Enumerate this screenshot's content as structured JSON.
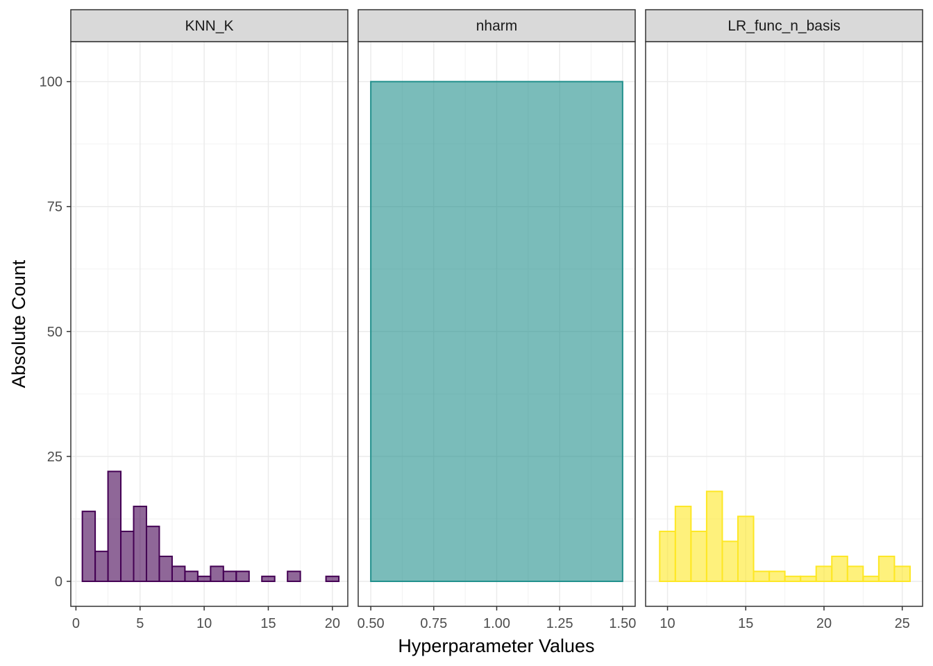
{
  "chart_data": {
    "type": "bar",
    "subtype": "faceted-histogram",
    "title": "",
    "xlabel": "Hyperparameter Values",
    "ylabel": "Absolute Count",
    "ylim": [
      -5,
      108
    ],
    "y_ticks": [
      0,
      25,
      50,
      75,
      100
    ],
    "y_tick_labels": [
      "0",
      "25",
      "50",
      "75",
      "100"
    ],
    "grid": true,
    "legend": "none",
    "facets": [
      {
        "name": "KNN_K",
        "fill": "#440154",
        "outline": "#440154",
        "fill_opacity": 0.6,
        "xlim": [
          -0.4,
          21.2
        ],
        "x_ticks": [
          0,
          5,
          10,
          15,
          20
        ],
        "x_tick_labels": [
          "0",
          "5",
          "10",
          "15",
          "20"
        ],
        "bins": [
          {
            "x0": 0.5,
            "x1": 1.5,
            "count": 14
          },
          {
            "x0": 1.5,
            "x1": 2.5,
            "count": 6
          },
          {
            "x0": 2.5,
            "x1": 3.5,
            "count": 22
          },
          {
            "x0": 3.5,
            "x1": 4.5,
            "count": 10
          },
          {
            "x0": 4.5,
            "x1": 5.5,
            "count": 15
          },
          {
            "x0": 5.5,
            "x1": 6.5,
            "count": 11
          },
          {
            "x0": 6.5,
            "x1": 7.5,
            "count": 5
          },
          {
            "x0": 7.5,
            "x1": 8.5,
            "count": 3
          },
          {
            "x0": 8.5,
            "x1": 9.5,
            "count": 2
          },
          {
            "x0": 9.5,
            "x1": 10.5,
            "count": 1
          },
          {
            "x0": 10.5,
            "x1": 11.5,
            "count": 3
          },
          {
            "x0": 11.5,
            "x1": 12.5,
            "count": 2
          },
          {
            "x0": 12.5,
            "x1": 13.5,
            "count": 2
          },
          {
            "x0": 13.5,
            "x1": 14.5,
            "count": 0
          },
          {
            "x0": 14.5,
            "x1": 15.5,
            "count": 1
          },
          {
            "x0": 15.5,
            "x1": 16.5,
            "count": 0
          },
          {
            "x0": 16.5,
            "x1": 17.5,
            "count": 2
          },
          {
            "x0": 17.5,
            "x1": 18.5,
            "count": 0
          },
          {
            "x0": 18.5,
            "x1": 19.5,
            "count": 0
          },
          {
            "x0": 19.5,
            "x1": 20.5,
            "count": 1
          }
        ]
      },
      {
        "name": "nharm",
        "fill": "#21908c",
        "outline": "#21908c",
        "fill_opacity": 0.6,
        "xlim": [
          0.45,
          1.55
        ],
        "x_ticks": [
          0.5,
          0.75,
          1.0,
          1.25,
          1.5
        ],
        "x_tick_labels": [
          "0.50",
          "0.75",
          "1.00",
          "1.25",
          "1.50"
        ],
        "bins": [
          {
            "x0": 0.5,
            "x1": 1.5,
            "count": 100
          }
        ]
      },
      {
        "name": "LR_func_n_basis",
        "fill": "#fde725",
        "outline": "#fde725",
        "fill_opacity": 0.6,
        "xlim": [
          8.6,
          26.3
        ],
        "x_ticks": [
          10,
          15,
          20,
          25
        ],
        "x_tick_labels": [
          "10",
          "15",
          "20",
          "25"
        ],
        "bins": [
          {
            "x0": 9.5,
            "x1": 10.5,
            "count": 10
          },
          {
            "x0": 10.5,
            "x1": 11.5,
            "count": 15
          },
          {
            "x0": 11.5,
            "x1": 12.5,
            "count": 10
          },
          {
            "x0": 12.5,
            "x1": 13.5,
            "count": 18
          },
          {
            "x0": 13.5,
            "x1": 14.5,
            "count": 8
          },
          {
            "x0": 14.5,
            "x1": 15.5,
            "count": 13
          },
          {
            "x0": 15.5,
            "x1": 16.5,
            "count": 2
          },
          {
            "x0": 16.5,
            "x1": 17.5,
            "count": 2
          },
          {
            "x0": 17.5,
            "x1": 18.5,
            "count": 1
          },
          {
            "x0": 18.5,
            "x1": 19.5,
            "count": 1
          },
          {
            "x0": 19.5,
            "x1": 20.5,
            "count": 3
          },
          {
            "x0": 20.5,
            "x1": 21.5,
            "count": 5
          },
          {
            "x0": 21.5,
            "x1": 22.5,
            "count": 3
          },
          {
            "x0": 22.5,
            "x1": 23.5,
            "count": 1
          },
          {
            "x0": 23.5,
            "x1": 24.5,
            "count": 5
          },
          {
            "x0": 24.5,
            "x1": 25.5,
            "count": 3
          }
        ]
      }
    ]
  }
}
